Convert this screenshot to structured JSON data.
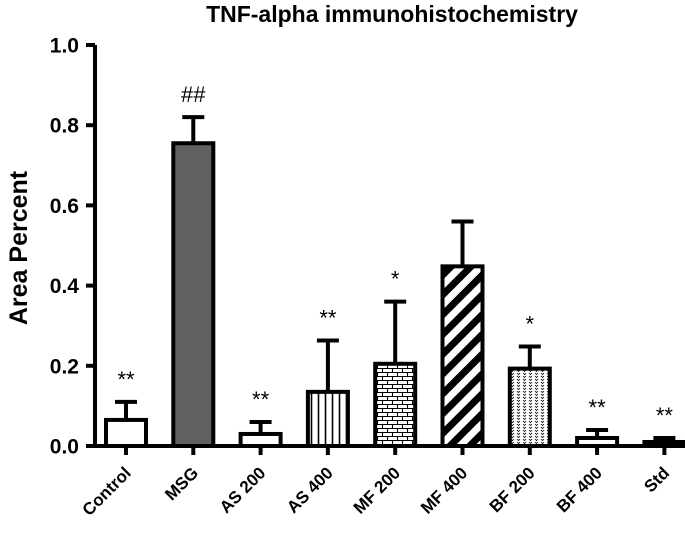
{
  "chart_data": {
    "type": "bar",
    "title": "TNF-alpha immunohistochemistry",
    "xlabel": "",
    "ylabel": "Area Percent",
    "ylim": [
      0,
      1.0
    ],
    "yticks": [
      "0.0",
      "0.2",
      "0.4",
      "0.6",
      "0.8",
      "1.0"
    ],
    "categories": [
      "Control",
      "MSG",
      "AS 200",
      "AS 400",
      "MF 200",
      "MF 400",
      "BF 200",
      "BF 400",
      "Std"
    ],
    "values": [
      0.065,
      0.755,
      0.03,
      0.135,
      0.205,
      0.448,
      0.193,
      0.02,
      0.01
    ],
    "errors": [
      0.045,
      0.065,
      0.03,
      0.128,
      0.155,
      0.112,
      0.055,
      0.02,
      0.01
    ],
    "annotations": [
      "**",
      "##",
      "**",
      "**",
      "*",
      "",
      "*",
      "**",
      "**"
    ],
    "fills": [
      "white",
      "solid-gray",
      "white",
      "vertical-lines",
      "bricks",
      "diagonal-stripes",
      "dots",
      "white",
      "white"
    ],
    "colors": {
      "bar_stroke": "#000000",
      "solid_gray": "#606060",
      "background": "#ffffff"
    }
  }
}
